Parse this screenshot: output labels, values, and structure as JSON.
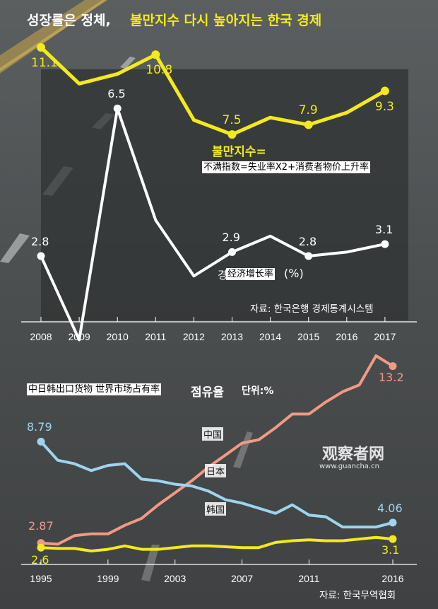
{
  "header": {
    "title_part1": "성장률은 정체,",
    "title_part2": "불만지수 다시 높아지는 한국 경제"
  },
  "top_chart": {
    "misery_label": "불만지수=",
    "misery_caption": "不满指数=失业率X2+消费者物价上升率",
    "growth_label_partial": "경",
    "growth_label": "经济增长率",
    "growth_unit": "(%)",
    "source": "자료: 한국은행 경제통계시스템"
  },
  "bottom_chart": {
    "title_cn": "中日韩出口货物 世界市场占有率",
    "title_kr": "점유율",
    "unit": "단위:%",
    "label_china": "中国",
    "label_japan": "日本",
    "label_korea": "韩国",
    "source": "자료: 한국무역협회"
  },
  "watermark": {
    "main": "观察者网",
    "url": "www.guancha.cn"
  },
  "colors": {
    "yellow": "#f3ea1b",
    "white": "#ffffff",
    "blue": "#9fd3ee",
    "orange": "#f09a86"
  },
  "chart_data": [
    {
      "type": "line",
      "x": [
        "2008",
        "2009",
        "2010",
        "2011",
        "2012",
        "2013",
        "2014",
        "2015",
        "2016",
        "2017"
      ],
      "series": [
        {
          "name": "불만지수",
          "values": [
            11.1,
            9.6,
            10.0,
            10.8,
            8.1,
            7.5,
            8.2,
            7.9,
            8.4,
            9.3
          ],
          "labels": [
            "11.1",
            "",
            "",
            "10.8",
            "",
            "7.5",
            "",
            "7.9",
            "",
            "9.3"
          ]
        },
        {
          "name": "경제성장률",
          "values": [
            2.8,
            0.7,
            6.5,
            3.7,
            2.3,
            2.9,
            3.3,
            2.8,
            2.9,
            3.1
          ],
          "labels": [
            "2.8",
            "",
            "6.5",
            "",
            "",
            "2.9",
            "",
            "2.8",
            "",
            "3.1"
          ]
        }
      ]
    },
    {
      "type": "line",
      "x": [
        1995,
        1996,
        1997,
        1998,
        1999,
        2000,
        2001,
        2002,
        2003,
        2004,
        2005,
        2006,
        2007,
        2008,
        2009,
        2010,
        2011,
        2012,
        2013,
        2014,
        2015,
        2016
      ],
      "xticks": [
        "1995",
        "1999",
        "2003",
        "2007",
        "2011",
        "2016"
      ],
      "series": [
        {
          "name": "中国",
          "values": [
            2.87,
            2.8,
            3.3,
            3.4,
            3.4,
            3.9,
            4.3,
            5.1,
            5.8,
            6.5,
            7.3,
            8.0,
            8.7,
            8.9,
            9.6,
            10.4,
            10.4,
            11.1,
            11.7,
            12.1,
            13.8,
            13.2
          ],
          "labels": {
            "0": "2.87",
            "21": "13.2"
          }
        },
        {
          "name": "日本",
          "values": [
            8.79,
            7.7,
            7.5,
            7.1,
            7.4,
            7.5,
            6.6,
            6.5,
            6.3,
            6.2,
            5.9,
            5.4,
            5.2,
            4.9,
            4.6,
            5.1,
            4.5,
            4.4,
            3.8,
            3.8,
            3.8,
            4.06
          ],
          "labels": {
            "0": "8.79",
            "21": "4.06"
          }
        },
        {
          "name": "韩国",
          "values": [
            2.6,
            2.55,
            2.55,
            2.4,
            2.5,
            2.7,
            2.5,
            2.5,
            2.6,
            2.7,
            2.7,
            2.65,
            2.6,
            2.6,
            2.9,
            3.0,
            3.05,
            3.0,
            3.0,
            3.1,
            3.2,
            3.1
          ],
          "labels": {
            "0": "2.6",
            "21": "3.1"
          }
        }
      ]
    }
  ]
}
